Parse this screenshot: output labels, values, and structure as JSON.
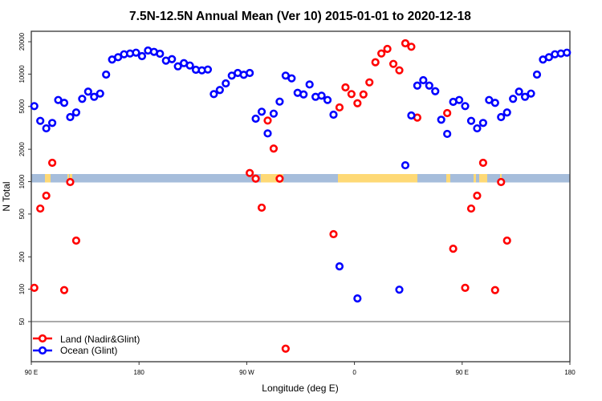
{
  "chart_data": {
    "type": "scatter",
    "title": "7.5N-12.5N Annual Mean (Ver 10)   2015-01-01 to 2020-12-18",
    "xlabel": "Longitude (deg E)",
    "ylabel": "N Total",
    "x_ticks": [
      {
        "lon": 90,
        "label": "90 E"
      },
      {
        "lon": 180,
        "label": "180"
      },
      {
        "lon": 270,
        "label": "90 W"
      },
      {
        "lon": 360,
        "label": "0"
      },
      {
        "lon": 450,
        "label": "90 E"
      },
      {
        "lon": 540,
        "label": "180"
      }
    ],
    "xlim_note": "90 E eastward through 180 around to 180 (wrapped longitude)",
    "y_scale": "log",
    "ylim": [
      21,
      25000
    ],
    "y_ticks": [
      50,
      100,
      200,
      500,
      1000,
      2000,
      5000,
      10000,
      20000
    ],
    "y_tick_labels": [
      "50",
      "100",
      "200",
      "500",
      "1000",
      "2000",
      "5000",
      "10000",
      "20000"
    ],
    "grid": false,
    "reference_line": 50,
    "land_sea_strip": {
      "colors": {
        "ocean": "#a6bddb",
        "land": "#fed976"
      }
    },
    "legend": {
      "placement": "bottom-left"
    },
    "series": [
      {
        "name": "Land (Nadir&Glint)",
        "color": "#ff0000",
        "points": [
          [
            92.5,
            103
          ],
          [
            97.5,
            562
          ],
          [
            102.5,
            740
          ],
          [
            107.5,
            1497
          ],
          [
            117.5,
            98
          ],
          [
            122.5,
            991
          ],
          [
            127.5,
            283
          ],
          [
            -87.5,
            1204
          ],
          [
            -82.5,
            1067
          ],
          [
            -77.5,
            573
          ],
          [
            -72.5,
            3700
          ],
          [
            -67.5,
            2030
          ],
          [
            -62.5,
            1067
          ],
          [
            -57.5,
            28
          ],
          [
            -17.5,
            325
          ],
          [
            -12.5,
            4900
          ],
          [
            -7.5,
            7520
          ],
          [
            -2.5,
            6520
          ],
          [
            2.5,
            5360
          ],
          [
            7.5,
            6475
          ],
          [
            12.5,
            8380
          ],
          [
            17.5,
            12880
          ],
          [
            22.5,
            15550
          ],
          [
            27.5,
            17150
          ],
          [
            32.5,
            12440
          ],
          [
            37.5,
            10840
          ],
          [
            42.5,
            19330
          ],
          [
            47.5,
            17960
          ],
          [
            52.5,
            3940
          ],
          [
            77.5,
            4340
          ],
          [
            82.5,
            238
          ]
        ]
      },
      {
        "name": "Ocean (Glint)",
        "color": "#0000ff",
        "points": [
          [
            92.5,
            5040
          ],
          [
            97.5,
            3675
          ],
          [
            102.5,
            3130
          ],
          [
            107.5,
            3515
          ],
          [
            112.5,
            5745
          ],
          [
            117.5,
            5400
          ],
          [
            122.5,
            3985
          ],
          [
            127.5,
            4395
          ],
          [
            132.5,
            5885
          ],
          [
            137.5,
            6870
          ],
          [
            142.5,
            6150
          ],
          [
            147.5,
            6590
          ],
          [
            152.5,
            9900
          ],
          [
            157.5,
            13650
          ],
          [
            162.5,
            14360
          ],
          [
            167.5,
            15290
          ],
          [
            172.5,
            15550
          ],
          [
            177.5,
            15820
          ],
          [
            -177.5,
            14690
          ],
          [
            -172.5,
            16570
          ],
          [
            -167.5,
            16100
          ],
          [
            -162.5,
            15460
          ],
          [
            -157.5,
            13330
          ],
          [
            -152.5,
            13780
          ],
          [
            -147.5,
            11810
          ],
          [
            -142.5,
            12650
          ],
          [
            -137.5,
            12020
          ],
          [
            -132.5,
            10970
          ],
          [
            -127.5,
            10840
          ],
          [
            -122.5,
            11030
          ],
          [
            -117.5,
            6520
          ],
          [
            -112.5,
            7110
          ],
          [
            -107.5,
            8195
          ],
          [
            -102.5,
            9680
          ],
          [
            -97.5,
            10240
          ],
          [
            -92.5,
            9850
          ],
          [
            -87.5,
            10240
          ],
          [
            -82.5,
            3850
          ],
          [
            -77.5,
            4470
          ],
          [
            -72.5,
            2810
          ],
          [
            -67.5,
            4290
          ],
          [
            -62.5,
            5550
          ],
          [
            -57.5,
            9680
          ],
          [
            -52.5,
            9130
          ],
          [
            -47.5,
            6700
          ],
          [
            -42.5,
            6475
          ],
          [
            -37.5,
            8010
          ],
          [
            -32.5,
            6150
          ],
          [
            -27.5,
            6300
          ],
          [
            -22.5,
            5745
          ],
          [
            -17.5,
            4195
          ],
          [
            -12.5,
            163
          ],
          [
            2.5,
            82
          ],
          [
            37.5,
            99
          ],
          [
            42.5,
            1420
          ],
          [
            47.5,
            4125
          ],
          [
            52.5,
            7820
          ],
          [
            57.5,
            8775
          ],
          [
            62.5,
            7820
          ],
          [
            67.5,
            6935
          ],
          [
            72.5,
            3765
          ],
          [
            77.5,
            2780
          ],
          [
            82.5,
            5520
          ],
          [
            87.5,
            5745
          ]
        ]
      }
    ]
  }
}
